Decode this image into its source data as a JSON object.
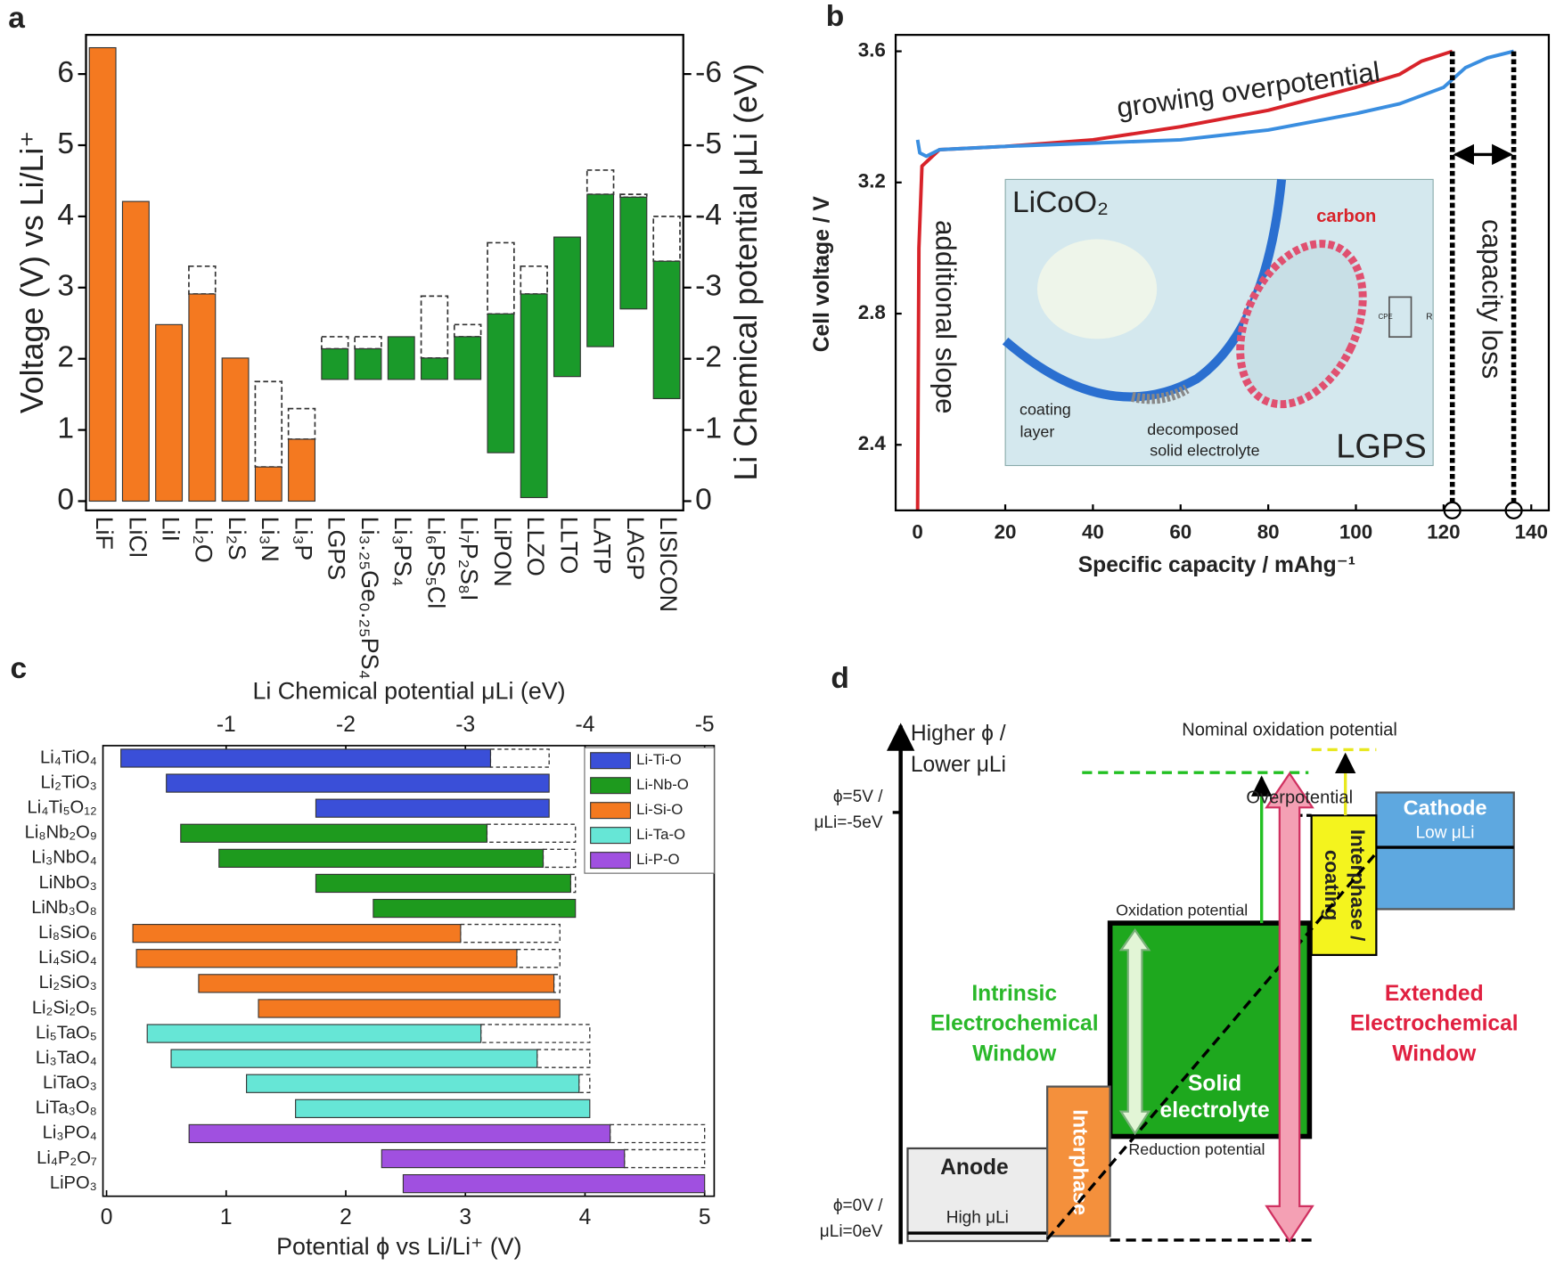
{
  "chart_data": [
    {
      "type": "floating-bar",
      "panel_label": "a",
      "ylabel": "Voltage (V) vs Li/Li⁺",
      "y2label": "Li Chemical potential μLi (eV)",
      "categories": [
        "LiF",
        "LiCl",
        "LiI",
        "Li₂O",
        "Li₂S",
        "Li₃N",
        "Li₃P",
        "LGPS",
        "Li₃.₂₅Ge₀.₂₅PS₄",
        "Li₃PS₄",
        "Li₆PS₅Cl",
        "Li₇P₂S₈I",
        "LiPON",
        "LLZO",
        "LLTO",
        "LATP",
        "LAGP",
        "LISICON"
      ],
      "low": [
        0,
        0,
        0,
        0,
        0,
        0,
        0,
        1.71,
        1.71,
        1.71,
        1.71,
        1.71,
        0.68,
        0.05,
        1.75,
        2.17,
        2.7,
        1.44
      ],
      "high": [
        6.37,
        4.21,
        2.48,
        2.91,
        2.01,
        0.48,
        0.87,
        2.14,
        2.14,
        2.31,
        2.01,
        2.31,
        2.63,
        2.91,
        3.71,
        4.31,
        4.27,
        3.37
      ],
      "dashed_high": [
        null,
        null,
        null,
        3.3,
        null,
        1.68,
        1.3,
        2.31,
        2.31,
        null,
        2.88,
        2.48,
        3.63,
        3.3,
        null,
        4.65,
        4.31,
        4.0
      ],
      "colors": [
        "#f47920",
        "#f47920",
        "#f47920",
        "#f47920",
        "#f47920",
        "#f47920",
        "#f47920",
        "#1a9a2a",
        "#1a9a2a",
        "#1a9a2a",
        "#1a9a2a",
        "#1a9a2a",
        "#1a9a2a",
        "#1a9a2a",
        "#1a9a2a",
        "#1a9a2a",
        "#1a9a2a",
        "#1a9a2a"
      ],
      "ylim": [
        -0.13,
        6.55
      ],
      "yticks": [
        0,
        1,
        2,
        3,
        4,
        5,
        6
      ],
      "y2lim": [
        0.13,
        -6.55
      ],
      "y2ticks": [
        0,
        -1,
        -2,
        -3,
        -4,
        -5,
        -6
      ]
    },
    {
      "type": "line",
      "panel_label": "b",
      "xlabel": "Specific capacity / mAhg⁻¹",
      "ylabel": "Cell voltage / V",
      "xlim": [
        -5,
        144
      ],
      "ylim": [
        2.2,
        3.65
      ],
      "xticks": [
        0,
        20,
        40,
        60,
        80,
        100,
        120,
        140
      ],
      "yticks": [
        2.4,
        2.8,
        3.2,
        3.6
      ],
      "series": [
        {
          "color": "#d8232a",
          "x": [
            0,
            0.3,
            1,
            5,
            20,
            40,
            60,
            80,
            100,
            110,
            115,
            122
          ],
          "values": [
            2.2,
            3.0,
            3.25,
            3.3,
            3.31,
            3.33,
            3.37,
            3.42,
            3.49,
            3.53,
            3.57,
            3.6
          ]
        },
        {
          "color": "#3a8ee0",
          "x": [
            0,
            0.5,
            2,
            5,
            20,
            40,
            60,
            80,
            100,
            110,
            120,
            125,
            130,
            136
          ],
          "values": [
            3.33,
            3.29,
            3.28,
            3.3,
            3.31,
            3.32,
            3.33,
            3.36,
            3.41,
            3.44,
            3.49,
            3.55,
            3.58,
            3.6
          ]
        }
      ],
      "capacity_markers": [
        122,
        136
      ],
      "annotations": [
        "growing overpotential",
        "additional slope",
        "capacity loss"
      ],
      "inset": {
        "particle": "LiCoO₂",
        "carbon": "carbon",
        "coating": [
          "coating",
          "layer"
        ],
        "decomposed": [
          "decomposed",
          "solid electrolyte"
        ],
        "electrolyte": "LGPS",
        "resistor": "R",
        "cpe": "CPE"
      }
    },
    {
      "type": "floating-hbar",
      "panel_label": "c",
      "xlabel": "Potential ϕ vs Li/Li⁺ (V)",
      "x2label": "Li Chemical potential μLi (eV)",
      "xlim": [
        -0.03,
        5.08
      ],
      "xticks": [
        0,
        1,
        2,
        3,
        4,
        5
      ],
      "x2lim": [
        0.03,
        -5.08
      ],
      "x2ticks": [
        -1,
        -2,
        -3,
        -4,
        -5
      ],
      "legend": "upper right",
      "series": [
        {
          "name": "Li-Ti-O",
          "color": "#3a4fd8",
          "categories": [
            "Li₄TiO₄",
            "Li₂TiO₃",
            "Li₄Ti₅O₁₂"
          ],
          "low": [
            0.12,
            0.5,
            1.75
          ],
          "high": [
            3.21,
            3.7,
            3.7
          ],
          "dashed_high": [
            3.7,
            null,
            null
          ]
        },
        {
          "name": "Li-Nb-O",
          "color": "#1e9a1e",
          "categories": [
            "Li₈Nb₂O₉",
            "Li₃NbO₄",
            "LiNbO₃",
            "LiNb₃O₈"
          ],
          "low": [
            0.62,
            0.94,
            1.75,
            2.23
          ],
          "high": [
            3.18,
            3.65,
            3.88,
            3.92
          ],
          "dashed_high": [
            3.92,
            3.92,
            3.92,
            null
          ]
        },
        {
          "name": "Li-Si-O",
          "color": "#f47920",
          "categories": [
            "Li₈SiO₆",
            "Li₄SiO₄",
            "Li₂SiO₃",
            "Li₂Si₂O₅"
          ],
          "low": [
            0.22,
            0.25,
            0.77,
            1.27
          ],
          "high": [
            2.96,
            3.43,
            3.74,
            3.79
          ],
          "dashed_high": [
            3.79,
            3.79,
            3.79,
            null
          ]
        },
        {
          "name": "Li-Ta-O",
          "color": "#66e6d6",
          "categories": [
            "Li₅TaO₅",
            "Li₃TaO₄",
            "LiTaO₃",
            "LiTa₃O₈"
          ],
          "low": [
            0.34,
            0.54,
            1.17,
            1.58
          ],
          "high": [
            3.13,
            3.6,
            3.95,
            4.04
          ],
          "dashed_high": [
            4.04,
            4.04,
            4.04,
            null
          ]
        },
        {
          "name": "Li-P-O",
          "color": "#a050e0",
          "categories": [
            "Li₃PO₄",
            "Li₄P₂O₇",
            "LiPO₃"
          ],
          "low": [
            0.69,
            2.3,
            2.48
          ],
          "high": [
            4.21,
            4.33,
            5.0
          ],
          "dashed_high": [
            5.0,
            5.0,
            null
          ]
        }
      ]
    }
  ],
  "diagram": {
    "panel_label": "d",
    "axis_label": [
      "Higher ϕ /",
      "Lower μLi"
    ],
    "nominal": "Nominal oxidation potential",
    "top_level": [
      "ϕ=5V /",
      "μLi=-5eV"
    ],
    "bottom_level": [
      "ϕ=0V /",
      "μLi=0eV"
    ],
    "overpotential": "Overpotential",
    "cathode": [
      "Cathode",
      "Low μLi"
    ],
    "coating": [
      "Interphase /",
      "coating"
    ],
    "oxidation": "Oxidation potential",
    "reduction": "Reduction potential",
    "intrinsic": [
      "Intrinsic",
      "Electrochemical",
      "Window"
    ],
    "extended": [
      "Extended",
      "Electrochemical",
      "Window"
    ],
    "electrolyte": [
      "Solid",
      "electrolyte"
    ],
    "interphase": "Interphase",
    "anode": [
      "Anode",
      "High μLi"
    ]
  }
}
